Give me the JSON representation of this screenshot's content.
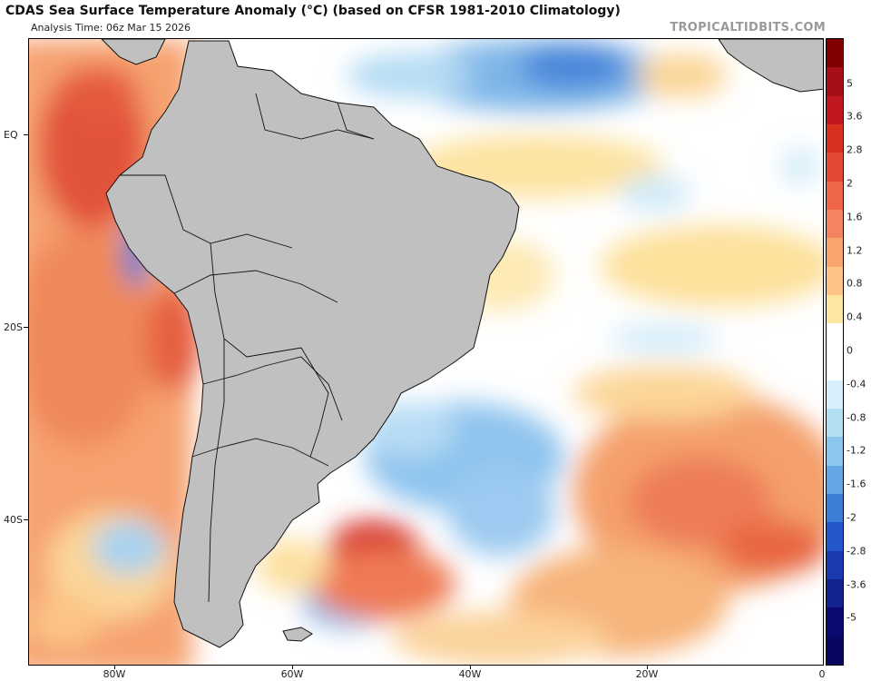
{
  "header": {
    "title": "CDAS Sea Surface Temperature Anomaly (°C) (based on CFSR 1981-2010 Climatology)",
    "analysis_time": "Analysis Time: 06z Mar 15 2026",
    "brand": "TROPICALTIDBITS.COM"
  },
  "map": {
    "region": "South America and South Atlantic",
    "lat_labels": [
      "EQ",
      "20S",
      "40S"
    ],
    "lon_labels": [
      "80W",
      "60W",
      "40W",
      "20W",
      "0"
    ],
    "land_color": "#c0c0c0",
    "border_color": "#222222"
  },
  "colorbar": {
    "labels": [
      "5",
      "3.6",
      "2.8",
      "2",
      "1.6",
      "1.2",
      "0.8",
      "0.4",
      "0",
      "-0.4",
      "-0.8",
      "-1.2",
      "-1.6",
      "-2",
      "-2.8",
      "-3.6",
      "-5"
    ],
    "colors": [
      "#7f0000",
      "#a50f15",
      "#c1181f",
      "#d7301f",
      "#e34a33",
      "#ef6548",
      "#f4845f",
      "#f9a66c",
      "#fcc585",
      "#fde7a0",
      "#ffffff",
      "#ffffff",
      "#d7f0fb",
      "#b3dff3",
      "#8cc6ec",
      "#63a6e3",
      "#3d7fd8",
      "#2457c9",
      "#1a3bb0",
      "#12238f",
      "#0a0a70",
      "#070760"
    ]
  }
}
